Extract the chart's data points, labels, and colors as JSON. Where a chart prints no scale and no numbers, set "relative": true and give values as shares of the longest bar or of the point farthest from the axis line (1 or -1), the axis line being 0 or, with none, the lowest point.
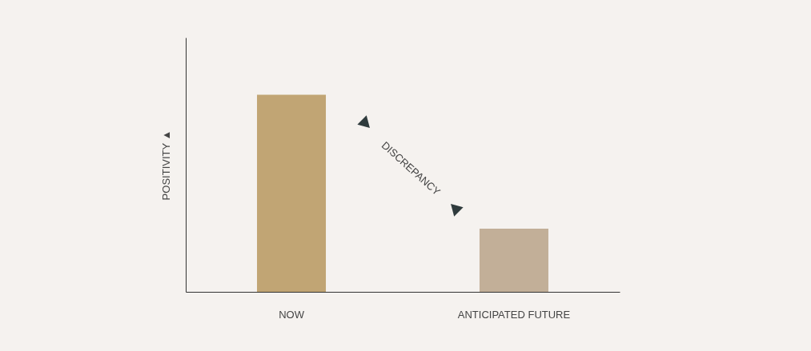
{
  "chart_data": {
    "type": "bar",
    "relative": true,
    "categories": [
      "NOW",
      "ANTICIPATED FUTURE"
    ],
    "values": [
      1,
      0.32
    ],
    "colors": [
      "#c1a574",
      "#c2af98"
    ],
    "ylabel": "POSITIVITY ▲",
    "annotations": [
      "DISCREPANCY"
    ]
  }
}
